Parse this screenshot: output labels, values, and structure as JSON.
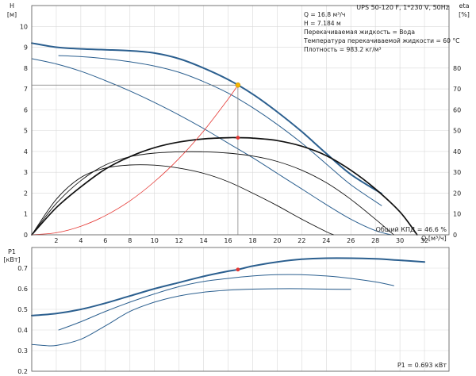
{
  "header": {
    "title": "UPS 50-120 F, 1*230 V, 50Hz"
  },
  "info_lines": [
    "Q = 16.8 м³/ч",
    "H = 7.184 м",
    "Перекачиваемая жидкость = Вода",
    "Температура перекачиваемой жидкости = 60 °C",
    "Плотность = 983.2 кг/м³"
  ],
  "annotations": {
    "efficiency": "Общий КПД = 46.6 %",
    "power": "P1 = 0.693 кВт"
  },
  "colors": {
    "pump_curve": "#2b5f8f",
    "efficiency_curve": "#111111",
    "system_curve": "#e53935",
    "duty_point": "#f5b400",
    "marker": "#e53935",
    "grid": "#d9d9d9"
  },
  "chart_data": [
    {
      "type": "line",
      "ylabel_left": "H [м]",
      "ylabel_left_parts": [
        "H",
        "[м]"
      ],
      "ylabel_right": "eta [%]",
      "ylabel_right_parts": [
        "eta",
        "[%]"
      ],
      "xlabel": "Q [м³/ч]",
      "xlim": [
        0,
        34
      ],
      "ylim_left": [
        0,
        11
      ],
      "ylim_right": [
        0,
        110
      ],
      "xticks": [
        0,
        2,
        4,
        6,
        8,
        10,
        12,
        14,
        16,
        18,
        20,
        22,
        24,
        26,
        28,
        30,
        32
      ],
      "yticks_left": [
        0,
        1,
        2,
        3,
        4,
        5,
        6,
        7,
        8,
        9,
        10
      ],
      "yticks_right": [
        0,
        10,
        20,
        30,
        40,
        50,
        60,
        70,
        80
      ],
      "grid": true,
      "series": [
        {
          "role": "head",
          "emphasis": true,
          "x": [
            0,
            2,
            4,
            6,
            8,
            10,
            12,
            14,
            16,
            18,
            20,
            22,
            24,
            26,
            28.5
          ],
          "y": [
            9.2,
            9.0,
            8.92,
            8.88,
            8.83,
            8.72,
            8.45,
            8.0,
            7.45,
            6.75,
            5.9,
            4.95,
            3.9,
            2.9,
            1.98
          ]
        },
        {
          "role": "head",
          "x": [
            2.2,
            4,
            6,
            8,
            10,
            12,
            14,
            16,
            18,
            20,
            22,
            24,
            26,
            28.5
          ],
          "y": [
            8.6,
            8.55,
            8.45,
            8.3,
            8.1,
            7.8,
            7.35,
            6.8,
            6.1,
            5.3,
            4.4,
            3.4,
            2.4,
            1.4
          ]
        },
        {
          "role": "head",
          "x": [
            0,
            2,
            4,
            6,
            8,
            10,
            12,
            14,
            16,
            18,
            20,
            22,
            24,
            26,
            28,
            29.3
          ],
          "y": [
            8.45,
            8.2,
            7.85,
            7.4,
            6.9,
            6.35,
            5.75,
            5.1,
            4.4,
            3.7,
            2.95,
            2.2,
            1.45,
            0.75,
            0.2,
            0.0
          ]
        },
        {
          "role": "efficiency",
          "emphasis": true,
          "x": [
            0,
            2,
            4,
            6,
            8,
            10,
            12,
            14,
            16,
            16.8,
            18,
            20,
            22,
            24,
            26,
            28,
            30,
            31.4
          ],
          "y": [
            0,
            13,
            23,
            31.5,
            37.5,
            41.8,
            44.5,
            46.0,
            46.6,
            46.6,
            46.4,
            45.2,
            42.5,
            38.0,
            31.0,
            22.0,
            11.0,
            0
          ]
        },
        {
          "role": "efficiency",
          "x": [
            0,
            2,
            4,
            6,
            8,
            10,
            12,
            14,
            16,
            18,
            20,
            22,
            24,
            26,
            28,
            29.5
          ],
          "y": [
            0,
            15,
            26,
            33.5,
            37.5,
            39.2,
            39.8,
            39.8,
            39.2,
            37.8,
            35.2,
            31.0,
            25.0,
            17.0,
            7.5,
            0
          ]
        },
        {
          "role": "efficiency",
          "x": [
            0,
            2,
            4,
            6,
            8,
            10,
            12,
            14,
            16,
            18,
            20,
            22,
            24,
            24.6
          ],
          "y": [
            0,
            17,
            27.5,
            32,
            33.5,
            33.4,
            32.0,
            29.5,
            25.5,
            20.0,
            14.0,
            7.5,
            1.5,
            0
          ]
        },
        {
          "role": "system",
          "x": [
            0,
            2,
            4,
            6,
            8,
            10,
            12,
            14,
            16,
            16.8
          ],
          "y": [
            0,
            0.1,
            0.41,
            0.92,
            1.63,
            2.55,
            3.66,
            4.98,
            6.51,
            7.184
          ]
        }
      ],
      "duty_point": {
        "x": 16.8,
        "y": 7.184
      },
      "efficiency_point": {
        "x": 16.8,
        "y": 46.6
      }
    },
    {
      "type": "line",
      "ylabel": "P1 [кВт]",
      "ylabel_parts": [
        "P1",
        "[кВт]"
      ],
      "xlim": [
        0,
        34
      ],
      "ylim": [
        0.2,
        0.8
      ],
      "yticks": [
        0.2,
        0.3,
        0.4,
        0.5,
        0.6,
        0.7
      ],
      "grid": true,
      "series": [
        {
          "role": "power",
          "emphasis": true,
          "x": [
            0,
            2,
            4,
            6,
            8,
            10,
            12,
            14,
            16,
            16.8,
            18,
            20,
            22,
            24,
            26,
            28,
            30,
            32
          ],
          "y": [
            0.47,
            0.48,
            0.5,
            0.53,
            0.565,
            0.6,
            0.63,
            0.66,
            0.685,
            0.693,
            0.71,
            0.73,
            0.743,
            0.748,
            0.748,
            0.745,
            0.738,
            0.73
          ]
        },
        {
          "role": "power",
          "x": [
            2.2,
            4,
            6,
            8,
            10,
            12,
            14,
            16,
            18,
            20,
            22,
            24,
            26,
            28,
            29.5
          ],
          "y": [
            0.4,
            0.44,
            0.49,
            0.535,
            0.575,
            0.61,
            0.635,
            0.65,
            0.662,
            0.668,
            0.668,
            0.662,
            0.65,
            0.633,
            0.615
          ]
        },
        {
          "role": "power",
          "x": [
            0,
            1,
            2,
            4,
            6,
            8,
            10,
            12,
            14,
            16,
            18,
            20,
            22,
            24,
            26
          ],
          "y": [
            0.33,
            0.325,
            0.325,
            0.355,
            0.42,
            0.49,
            0.535,
            0.565,
            0.583,
            0.593,
            0.598,
            0.6,
            0.6,
            0.598,
            0.597
          ]
        }
      ],
      "point": {
        "x": 16.8,
        "y": 0.693
      }
    }
  ]
}
